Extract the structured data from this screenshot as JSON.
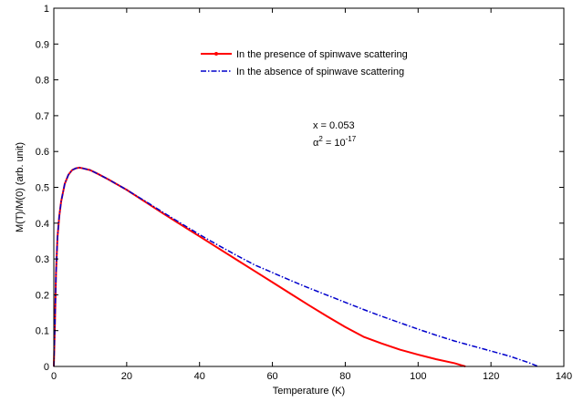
{
  "chart_data": {
    "type": "line",
    "xlabel": "Temperature (K)",
    "ylabel": "M(T)/M(0) (arb. unit)",
    "xlim": [
      0,
      140
    ],
    "ylim": [
      0,
      1
    ],
    "xticks": [
      "0",
      "20",
      "40",
      "60",
      "80",
      "100",
      "120",
      "140"
    ],
    "yticks": [
      "0",
      "0.1",
      "0.2",
      "0.3",
      "0.4",
      "0.5",
      "0.6",
      "0.7",
      "0.8",
      "0.9",
      "1"
    ],
    "grid": false,
    "legend_position": "top-center",
    "series": [
      {
        "name": "In the presence of spinwave scattering",
        "color": "#ff0000",
        "style": "solid",
        "marker": "dot",
        "x": [
          0,
          0.3,
          0.6,
          1,
          1.5,
          2,
          3,
          4,
          5,
          6,
          7,
          8,
          10,
          12,
          15,
          20,
          25,
          30,
          35,
          40,
          45,
          50,
          55,
          60,
          65,
          70,
          75,
          80,
          85,
          90,
          95,
          100,
          105,
          110,
          113
        ],
        "y": [
          0,
          0.12,
          0.26,
          0.36,
          0.42,
          0.46,
          0.51,
          0.535,
          0.548,
          0.553,
          0.555,
          0.553,
          0.548,
          0.538,
          0.522,
          0.493,
          0.46,
          0.427,
          0.395,
          0.363,
          0.331,
          0.299,
          0.267,
          0.235,
          0.203,
          0.171,
          0.14,
          0.11,
          0.083,
          0.064,
          0.047,
          0.033,
          0.02,
          0.009,
          0
        ]
      },
      {
        "name": "In the absence of spinwave scattering",
        "color": "#0000cc",
        "style": "dashdot",
        "x": [
          0,
          0.3,
          0.6,
          1,
          1.5,
          2,
          3,
          4,
          5,
          6,
          7,
          8,
          10,
          12,
          15,
          20,
          25,
          30,
          35,
          40,
          45,
          50,
          55,
          60,
          65,
          70,
          75,
          80,
          85,
          90,
          95,
          100,
          105,
          110,
          115,
          120,
          125,
          130,
          133
        ],
        "y": [
          0,
          0.12,
          0.26,
          0.36,
          0.42,
          0.46,
          0.51,
          0.535,
          0.548,
          0.553,
          0.555,
          0.553,
          0.548,
          0.538,
          0.522,
          0.493,
          0.462,
          0.43,
          0.399,
          0.368,
          0.339,
          0.311,
          0.284,
          0.262,
          0.24,
          0.219,
          0.199,
          0.179,
          0.159,
          0.14,
          0.122,
          0.104,
          0.087,
          0.071,
          0.057,
          0.043,
          0.029,
          0.012,
          0
        ]
      }
    ],
    "annotations": [
      {
        "text": "x = 0.053"
      },
      {
        "base": "α",
        "sup": "2",
        "mid": " = 10",
        "sup2": "-17"
      }
    ]
  }
}
